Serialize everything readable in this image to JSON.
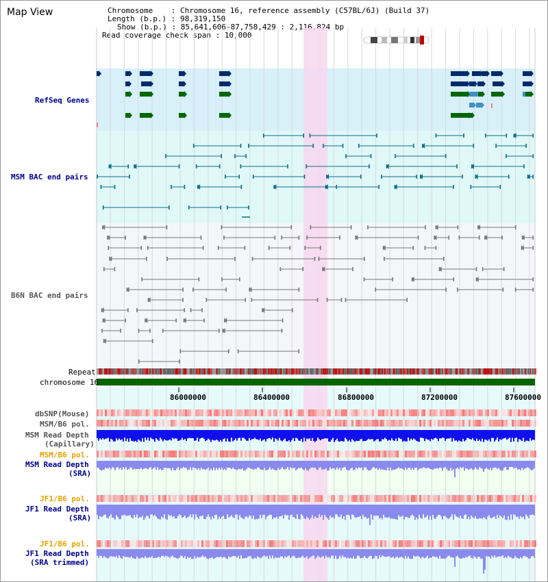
{
  "header": {
    "title": "Map View",
    "info_lines": [
      "Chromosome    : Chromosome 16, reference assembly (C57BL/6J) (Build 37)",
      "Length (b.p.) : 98,319,150",
      "Show (b.p.) : 85,641,606-87,758,429 : 2,116,824 bp",
      "Read coverage check span : 10,000"
    ]
  },
  "tracks": {
    "refseq": "RefSeq Genes",
    "msm_bac": "MSM BAC end pairs",
    "b6n_bac": "B6N BAC end pairs",
    "repeat": "Repeat",
    "chromosome": "chromosome 16",
    "dbsnp": "dbSNP(Mouse)",
    "msm_b6_pol_1": "MSM/B6 pol.",
    "msm_read_depth_cap_1": "MSM Read Depth",
    "msm_read_depth_cap_2": "(Capillary)",
    "msm_b6_pol_2": "MSM/B6 pol.",
    "msm_read_depth_sra_1": "MSM Read Depth",
    "msm_read_depth_sra_2": "(SRA)",
    "jf1_b6_pol_1": "JF1/B6 pol.",
    "jf1_read_depth_1": "JF1 Read Depth",
    "jf1_read_depth_2": "(SRA)",
    "jf1_b6_pol_2": "JF1/B6 pol.",
    "jf1_read_depth_trim_1": "JF1 Read Depth",
    "jf1_read_depth_trim_2": "(SRA trimmed)"
  },
  "axis": {
    "ticks": [
      "86000000",
      "86400000",
      "86800000",
      "87200000",
      "87600000"
    ]
  },
  "colors": {
    "highlight": "#f8d8f0",
    "refseq_bg": "#d8f0fa",
    "msm_bg": "#e0f8f8",
    "b6n_bg": "#f4f6fa",
    "pale_green_bg": "#f0fff0",
    "pale_cyan_bg": "#e6fafa",
    "gene_dark": "#002a6a",
    "gene_mid": "#4090c0",
    "gene_green": "#006600",
    "msm_line": "#0b6e8a",
    "b6n_line": "#777777",
    "chromosome": "#006400",
    "repeat_red": "#c01010",
    "depth_cap": "#1010ee",
    "depth_sra": "#8a8aee",
    "label_blue": "#00008b",
    "label_orange": "#e8a000"
  }
}
